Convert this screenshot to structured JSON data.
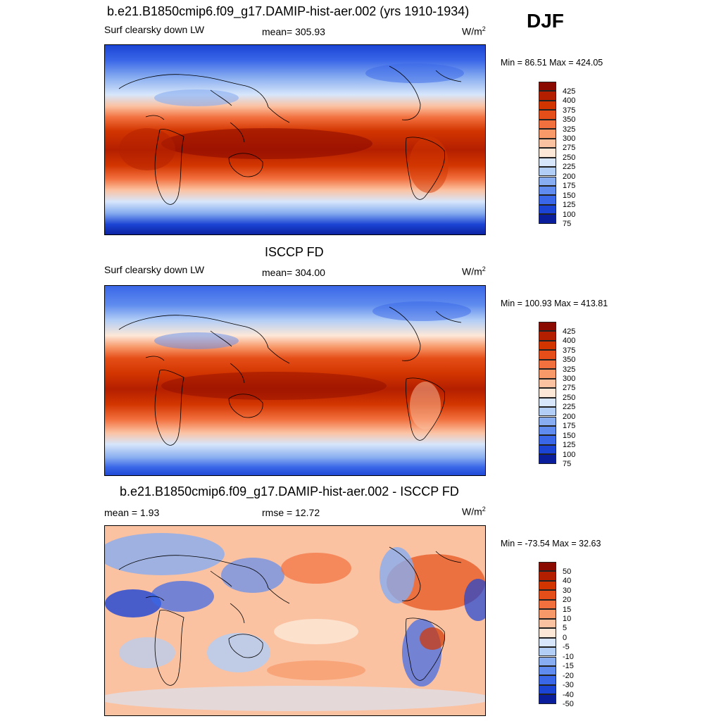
{
  "season": "DJF",
  "units_base": "W/m",
  "units_exp": "2",
  "panels": [
    {
      "title": "b.e21.B1850cmip6.f09_g17.DAMIP-hist-aer.002 (yrs 1910-1934)",
      "left": "Surf clearsky down LW",
      "center": "mean= 305.93",
      "minmax": "Min =  86.51 Max = 424.05",
      "field": "model"
    },
    {
      "title": "ISCCP FD",
      "left": "Surf clearsky down LW",
      "center": "mean= 304.00",
      "minmax": "Min = 100.93 Max = 413.81",
      "field": "obs"
    },
    {
      "title": "b.e21.B1850cmip6.f09_g17.DAMIP-hist-aer.002 - ISCCP FD",
      "left": "mean =   1.93",
      "center": "rmse =  12.72",
      "minmax": "Min = -73.54 Max =  32.63",
      "field": "diff"
    }
  ],
  "chart_data": [
    {
      "type": "heatmap",
      "title": "b.e21.B1850cmip6.f09_g17.DAMIP-hist-aer.002 (yrs 1910-1934)",
      "variable": "Surf clearsky down LW",
      "mean": 305.93,
      "min": 86.51,
      "max": 424.05,
      "levels": [
        425,
        400,
        375,
        350,
        325,
        300,
        275,
        250,
        225,
        200,
        175,
        150,
        125,
        100,
        75
      ],
      "colors": [
        "#8b0a00",
        "#b41f00",
        "#d23500",
        "#e54e18",
        "#f2703e",
        "#f8996a",
        "#fbc2a2",
        "#fde8d8",
        "#d7e6fb",
        "#b2cdf6",
        "#88adf0",
        "#5f8cee",
        "#3a67e8",
        "#1b44d4",
        "#0a1e9c"
      ]
    },
    {
      "type": "heatmap",
      "title": "ISCCP FD",
      "variable": "Surf clearsky down LW",
      "mean": 304.0,
      "min": 100.93,
      "max": 413.81,
      "levels": [
        425,
        400,
        375,
        350,
        325,
        300,
        275,
        250,
        225,
        200,
        175,
        150,
        125,
        100,
        75
      ],
      "colors": [
        "#8b0a00",
        "#b41f00",
        "#d23500",
        "#e54e18",
        "#f2703e",
        "#f8996a",
        "#fbc2a2",
        "#fde8d8",
        "#d7e6fb",
        "#b2cdf6",
        "#88adf0",
        "#5f8cee",
        "#3a67e8",
        "#1b44d4",
        "#0a1e9c"
      ]
    },
    {
      "type": "heatmap",
      "title": "b.e21.B1850cmip6.f09_g17.DAMIP-hist-aer.002 - ISCCP FD",
      "mean": 1.93,
      "rmse": 12.72,
      "min": -73.54,
      "max": 32.63,
      "levels": [
        50,
        40,
        30,
        20,
        15,
        10,
        5,
        0,
        -5,
        -10,
        -15,
        -20,
        -30,
        -40,
        -50
      ],
      "colors": [
        "#8b0a00",
        "#b41f00",
        "#d23500",
        "#e54e18",
        "#f2703e",
        "#f8996a",
        "#fbc2a2",
        "#fde8d8",
        "#d7e6fb",
        "#b2cdf6",
        "#88adf0",
        "#5f8cee",
        "#3a67e8",
        "#1b44d4",
        "#0a1e9c"
      ]
    }
  ]
}
